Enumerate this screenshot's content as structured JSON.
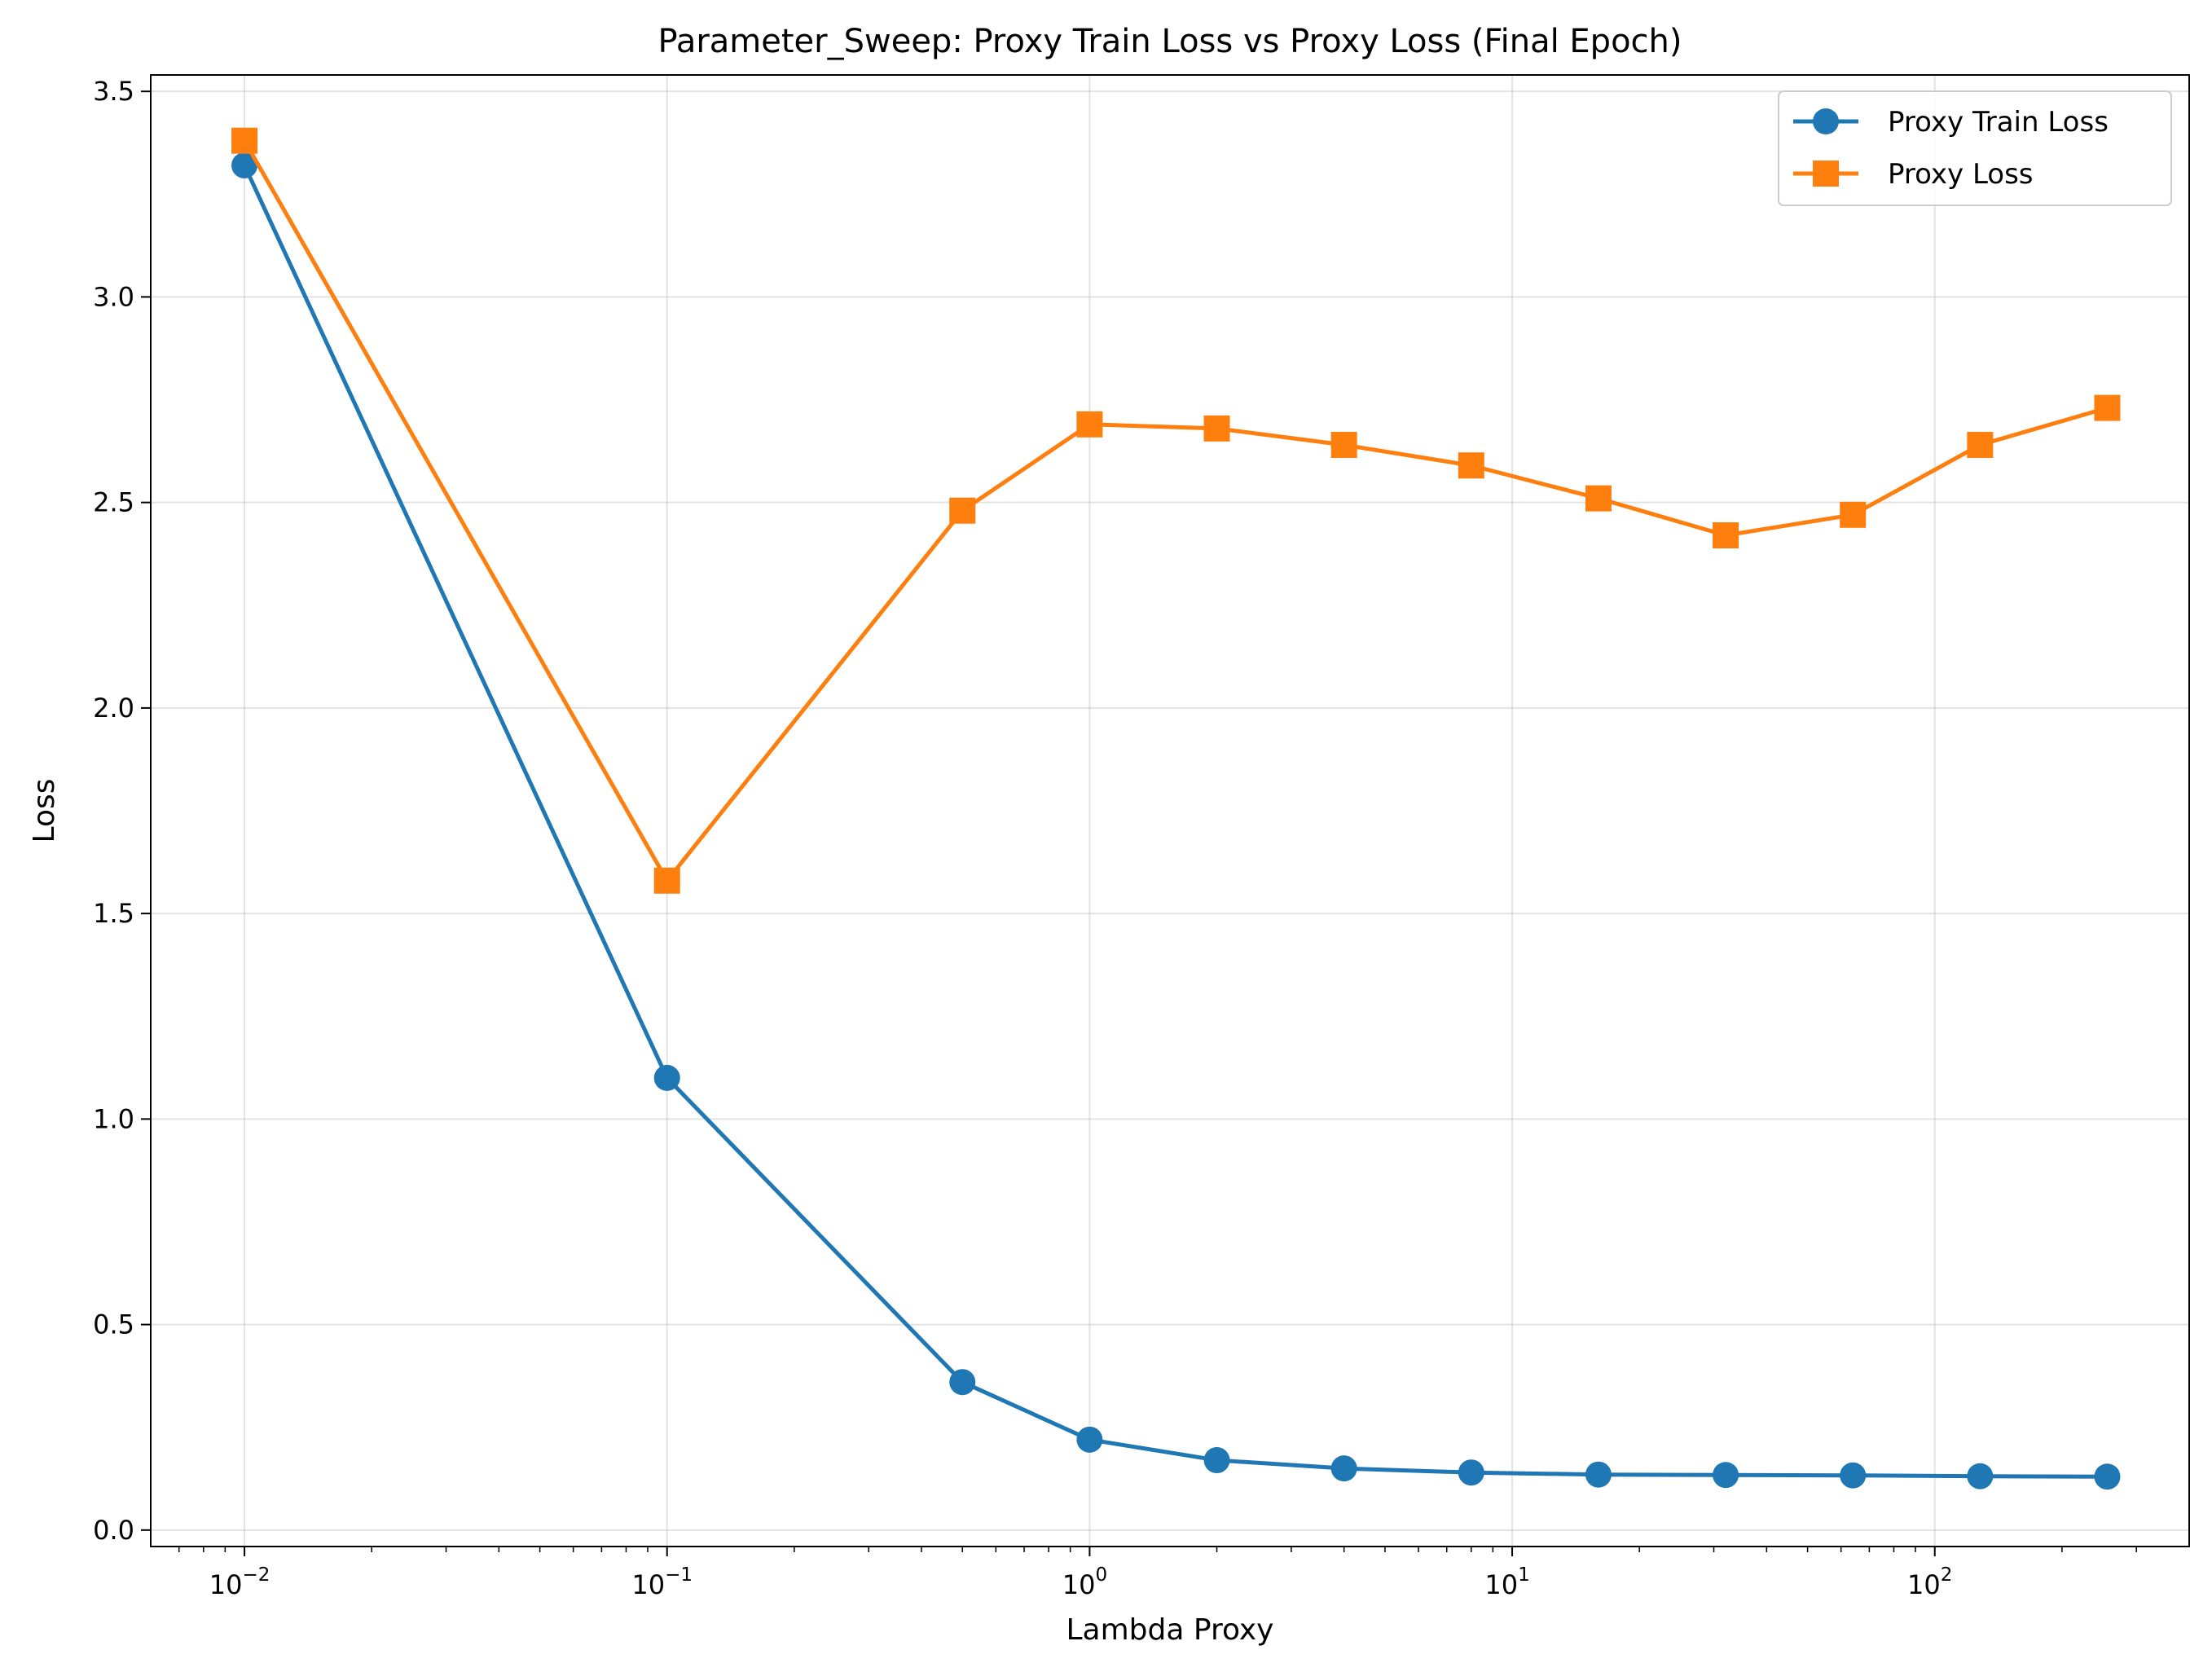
{
  "chart_data": {
    "type": "line",
    "title": "Parameter_Sweep: Proxy Train Loss vs Proxy Loss (Final Epoch)",
    "xlabel": "Lambda Proxy",
    "ylabel": "Loss",
    "xscale": "log",
    "xlim": [
      0.006,
      400
    ],
    "ylim": [
      -0.04,
      3.54
    ],
    "grid": true,
    "legend_position": "top-right",
    "x": [
      0.01,
      0.1,
      0.5,
      1,
      2,
      4,
      8,
      16,
      32,
      64,
      128,
      256
    ],
    "x_ticks": [
      {
        "value": 0.01,
        "base": "10",
        "exp": "−2"
      },
      {
        "value": 0.1,
        "base": "10",
        "exp": "−1"
      },
      {
        "value": 1,
        "base": "10",
        "exp": "0"
      },
      {
        "value": 10,
        "base": "10",
        "exp": "1"
      },
      {
        "value": 100,
        "base": "10",
        "exp": "2"
      }
    ],
    "y_ticks": [
      "0.0",
      "0.5",
      "1.0",
      "1.5",
      "2.0",
      "2.5",
      "3.0",
      "3.5"
    ],
    "series": [
      {
        "name": "Proxy Train Loss",
        "color": "#1f77b4",
        "marker": "circle",
        "values": [
          3.32,
          1.1,
          0.36,
          0.22,
          0.17,
          0.15,
          0.14,
          0.135,
          0.134,
          0.133,
          0.131,
          0.13
        ]
      },
      {
        "name": "Proxy Loss",
        "color": "#ff7f0e",
        "marker": "square",
        "values": [
          3.38,
          1.58,
          2.48,
          2.69,
          2.68,
          2.64,
          2.59,
          2.51,
          2.42,
          2.47,
          2.64,
          2.73
        ]
      }
    ]
  }
}
